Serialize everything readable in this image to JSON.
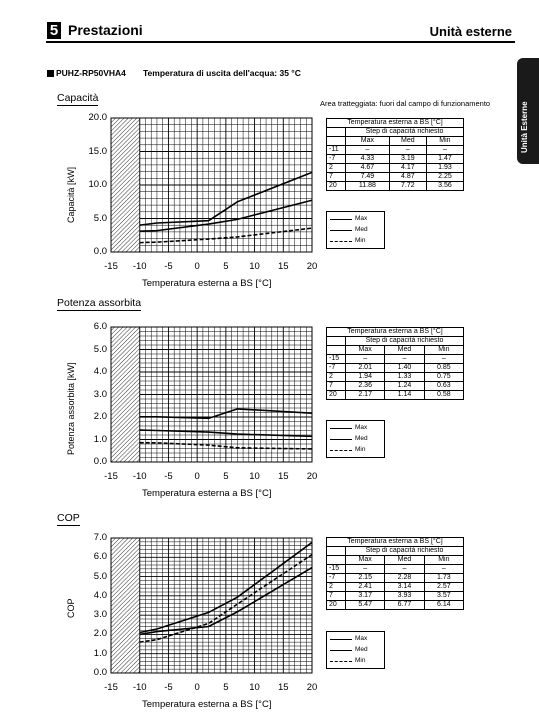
{
  "header": {
    "section_number": "5",
    "title": "Prestazioni",
    "right_title": "Unità esterne"
  },
  "side_tab": "Unità Esterne",
  "model": "PUHZ-RP50VHA4",
  "condition": "Temperatura di uscita dell'acqua: 35 °C",
  "note": "Area tratteggiata: fuori dal campo di funzionamento",
  "legend": {
    "max": "Max",
    "med": "Med",
    "min": "Min"
  },
  "table_header": {
    "line1": "Temperatura esterna a BS [°C]",
    "line2": "Step di capacità richiesto",
    "max": "Max",
    "med": "Med",
    "min": "Min"
  },
  "charts": [
    {
      "title": "Capacità",
      "ylabel": "Capacità [kW]",
      "xlabel": "Temperatura esterna a BS [°C]",
      "yticks": [
        "0.0",
        "5.0",
        "10.0",
        "15.0",
        "20.0"
      ],
      "xticks": [
        "-15",
        "-10",
        "-5",
        "0",
        "5",
        "10",
        "15",
        "20"
      ],
      "table": [
        {
          "t": "-11",
          "max": "–",
          "med": "–",
          "min": "–"
        },
        {
          "t": "-7",
          "max": "4.33",
          "med": "3.19",
          "min": "1.47"
        },
        {
          "t": "2",
          "max": "4.67",
          "med": "4.17",
          "min": "1.93"
        },
        {
          "t": "7",
          "max": "7.49",
          "med": "4.87",
          "min": "2.25"
        },
        {
          "t": "20",
          "max": "11.88",
          "med": "7.72",
          "min": "3.56"
        }
      ]
    },
    {
      "title": "Potenza assorbita",
      "ylabel": "Potenza assorbita [kW]",
      "xlabel": "Temperatura esterna a BS [°C]",
      "yticks": [
        "0.0",
        "1.0",
        "2.0",
        "3.0",
        "4.0",
        "5.0",
        "6.0"
      ],
      "xticks": [
        "-15",
        "-10",
        "-5",
        "0",
        "5",
        "10",
        "15",
        "20"
      ],
      "table": [
        {
          "t": "-15",
          "max": "–",
          "med": "–",
          "min": "–"
        },
        {
          "t": "-7",
          "max": "2.01",
          "med": "1.40",
          "min": "0.85"
        },
        {
          "t": "2",
          "max": "1.94",
          "med": "1.33",
          "min": "0.75"
        },
        {
          "t": "7",
          "max": "2.36",
          "med": "1.24",
          "min": "0.63"
        },
        {
          "t": "20",
          "max": "2.17",
          "med": "1.14",
          "min": "0.58"
        }
      ]
    },
    {
      "title": "COP",
      "ylabel": "COP",
      "xlabel": "Temperatura esterna a BS [°C]",
      "yticks": [
        "0.0",
        "1.0",
        "2.0",
        "3.0",
        "4.0",
        "5.0",
        "6.0",
        "7.0"
      ],
      "xticks": [
        "-15",
        "-10",
        "-5",
        "0",
        "5",
        "10",
        "15",
        "20"
      ],
      "table": [
        {
          "t": "-15",
          "max": "–",
          "med": "–",
          "min": "–"
        },
        {
          "t": "-7",
          "max": "2.15",
          "med": "2.28",
          "min": "1.73"
        },
        {
          "t": "2",
          "max": "2.41",
          "med": "3.14",
          "min": "2.57"
        },
        {
          "t": "7",
          "max": "3.17",
          "med": "3.93",
          "min": "3.57"
        },
        {
          "t": "20",
          "max": "5.47",
          "med": "6.77",
          "min": "6.14"
        }
      ]
    }
  ],
  "chart_data": [
    {
      "type": "line",
      "title": "Capacità",
      "xlabel": "Temperatura esterna a BS [°C]",
      "ylabel": "Capacità [kW]",
      "xlim": [
        -15,
        20
      ],
      "ylim": [
        0,
        20
      ],
      "hatched_region": [
        -15,
        -10
      ],
      "series": [
        {
          "name": "Max",
          "style": "solid",
          "x": [
            -10,
            -7,
            2,
            7,
            20
          ],
          "y": [
            4.0,
            4.33,
            4.67,
            7.49,
            11.88
          ]
        },
        {
          "name": "Med",
          "style": "solid",
          "x": [
            -10,
            -7,
            2,
            7,
            20
          ],
          "y": [
            3.1,
            3.19,
            4.17,
            4.87,
            7.72
          ]
        },
        {
          "name": "Min",
          "style": "dashed",
          "x": [
            -10,
            -7,
            2,
            7,
            20
          ],
          "y": [
            1.4,
            1.47,
            1.93,
            2.25,
            3.56
          ]
        }
      ]
    },
    {
      "type": "line",
      "title": "Potenza assorbita",
      "xlabel": "Temperatura esterna a BS [°C]",
      "ylabel": "Potenza assorbita [kW]",
      "xlim": [
        -15,
        20
      ],
      "ylim": [
        0,
        6
      ],
      "hatched_region": [
        -15,
        -10
      ],
      "series": [
        {
          "name": "Max",
          "style": "solid",
          "x": [
            -10,
            -7,
            2,
            7,
            20
          ],
          "y": [
            2.01,
            2.01,
            1.94,
            2.36,
            2.17
          ]
        },
        {
          "name": "Med",
          "style": "solid",
          "x": [
            -10,
            -7,
            2,
            7,
            20
          ],
          "y": [
            1.42,
            1.4,
            1.33,
            1.24,
            1.14
          ]
        },
        {
          "name": "Min",
          "style": "dashed",
          "x": [
            -10,
            -7,
            2,
            7,
            20
          ],
          "y": [
            0.86,
            0.85,
            0.75,
            0.63,
            0.58
          ]
        }
      ]
    },
    {
      "type": "line",
      "title": "COP",
      "xlabel": "Temperatura esterna a BS [°C]",
      "ylabel": "COP",
      "xlim": [
        -15,
        20
      ],
      "ylim": [
        0,
        7
      ],
      "hatched_region": [
        -15,
        -10
      ],
      "series": [
        {
          "name": "Max",
          "style": "solid",
          "x": [
            -10,
            -7,
            2,
            7,
            20
          ],
          "y": [
            2.0,
            2.15,
            2.41,
            3.17,
            5.47
          ]
        },
        {
          "name": "Med",
          "style": "solid",
          "x": [
            -10,
            -7,
            2,
            7,
            20
          ],
          "y": [
            2.1,
            2.28,
            3.14,
            3.93,
            6.77
          ]
        },
        {
          "name": "Min",
          "style": "dashed",
          "x": [
            -10,
            -7,
            2,
            7,
            20
          ],
          "y": [
            1.6,
            1.73,
            2.57,
            3.57,
            6.14
          ]
        }
      ]
    }
  ]
}
